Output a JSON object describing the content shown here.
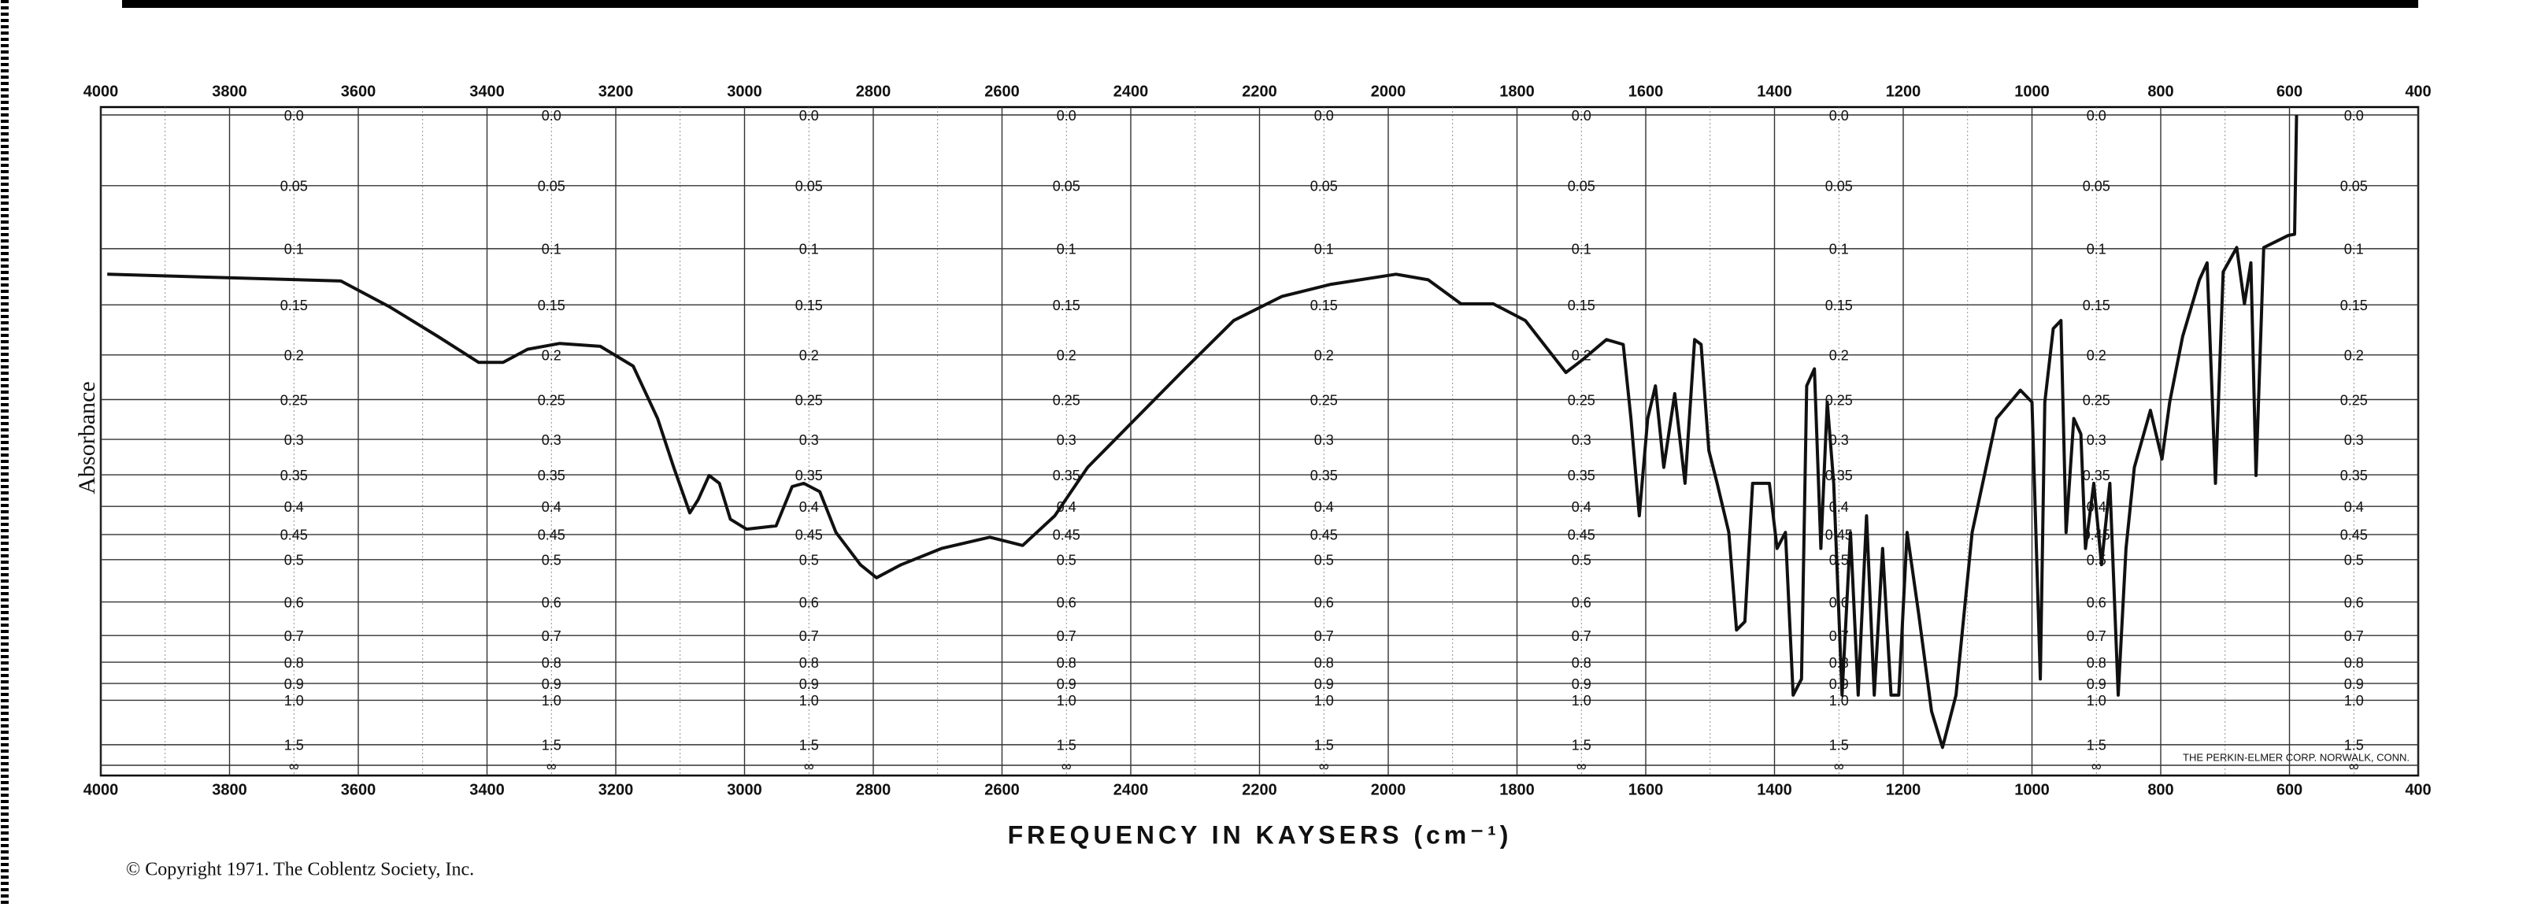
{
  "chart_data": {
    "type": "line",
    "x_label": "FREQUENCY IN KAYSERS (cm⁻¹)",
    "y_label": "Absorbance",
    "copyright": "© Copyright 1971. The Coblentz Society, Inc.",
    "maker_note": "THE PERKIN-ELMER CORP. NORWALK, CONN.",
    "xlim": [
      4000,
      400
    ],
    "xticks": [
      4000,
      3800,
      3600,
      3400,
      3200,
      3000,
      2800,
      2600,
      2400,
      2200,
      2000,
      1800,
      1600,
      1400,
      1200,
      1000,
      800,
      600,
      400
    ],
    "ylim": [
      0,
      null
    ],
    "yscale": "transmittance",
    "yticks": [
      {
        "value": 0,
        "label": "0.0"
      },
      0.05,
      0.1,
      0.15,
      0.2,
      0.25,
      0.3,
      0.35,
      0.4,
      0.45,
      0.5,
      0.6,
      0.7,
      0.8,
      0.9,
      {
        "value": 1,
        "label": "1.0"
      },
      1.5,
      {
        "value": null,
        "label": "∞"
      }
    ],
    "grid": true,
    "color": "#111111",
    "x": [
      3990,
      3627,
      3551,
      3476,
      3413,
      3375,
      3337,
      3287,
      3224,
      3173,
      3135,
      3110,
      3085,
      3072,
      3055,
      3039,
      3022,
      2997,
      2951,
      2926,
      2908,
      2883,
      2858,
      2820,
      2795,
      2757,
      2694,
      2619,
      2568,
      2518,
      2467,
      2392,
      2316,
      2240,
      2165,
      2089,
      1988,
      1938,
      1887,
      1837,
      1787,
      1724,
      1698,
      1661,
      1635,
      1623,
      1610,
      1597,
      1585,
      1572,
      1555,
      1539,
      1524,
      1514,
      1502,
      1489,
      1471,
      1459,
      1446,
      1434,
      1408,
      1396,
      1383,
      1371,
      1358,
      1350,
      1338,
      1328,
      1318,
      1308,
      1295,
      1282,
      1270,
      1257,
      1245,
      1232,
      1219,
      1207,
      1194,
      1176,
      1156,
      1139,
      1118,
      1093,
      1055,
      1018,
      1000,
      987,
      980,
      967,
      955,
      947,
      935,
      924,
      917,
      904,
      892,
      879,
      866,
      854,
      841,
      816,
      798,
      786,
      766,
      740,
      728,
      715,
      703,
      682,
      670,
      660,
      652,
      640,
      602,
      592,
      589
    ],
    "values": [
      0.122,
      0.128,
      0.152,
      0.181,
      0.208,
      0.208,
      0.194,
      0.188,
      0.191,
      0.212,
      0.273,
      0.339,
      0.411,
      0.389,
      0.351,
      0.363,
      0.422,
      0.44,
      0.434,
      0.368,
      0.363,
      0.376,
      0.446,
      0.511,
      0.54,
      0.511,
      0.477,
      0.455,
      0.471,
      0.416,
      0.339,
      0.273,
      0.215,
      0.165,
      0.142,
      0.131,
      0.122,
      0.127,
      0.149,
      0.149,
      0.165,
      0.219,
      0.205,
      0.184,
      0.189,
      0.273,
      0.416,
      0.273,
      0.234,
      0.339,
      0.243,
      0.363,
      0.184,
      0.189,
      0.315,
      0.363,
      0.446,
      0.682,
      0.656,
      0.363,
      0.363,
      0.477,
      0.446,
      0.967,
      0.877,
      0.234,
      0.215,
      0.477,
      0.253,
      0.363,
      0.967,
      0.446,
      0.967,
      0.416,
      0.967,
      0.477,
      0.967,
      0.967,
      0.446,
      0.633,
      1.082,
      1.56,
      0.967,
      0.446,
      0.273,
      0.239,
      0.253,
      0.877,
      0.253,
      0.173,
      0.165,
      0.446,
      0.273,
      0.293,
      0.477,
      0.363,
      0.511,
      0.363,
      0.967,
      0.477,
      0.339,
      0.263,
      0.327,
      0.253,
      0.181,
      0.127,
      0.112,
      0.363,
      0.12,
      0.099,
      0.149,
      0.112,
      0.351,
      0.099,
      0.089,
      0.088,
      0
    ]
  }
}
